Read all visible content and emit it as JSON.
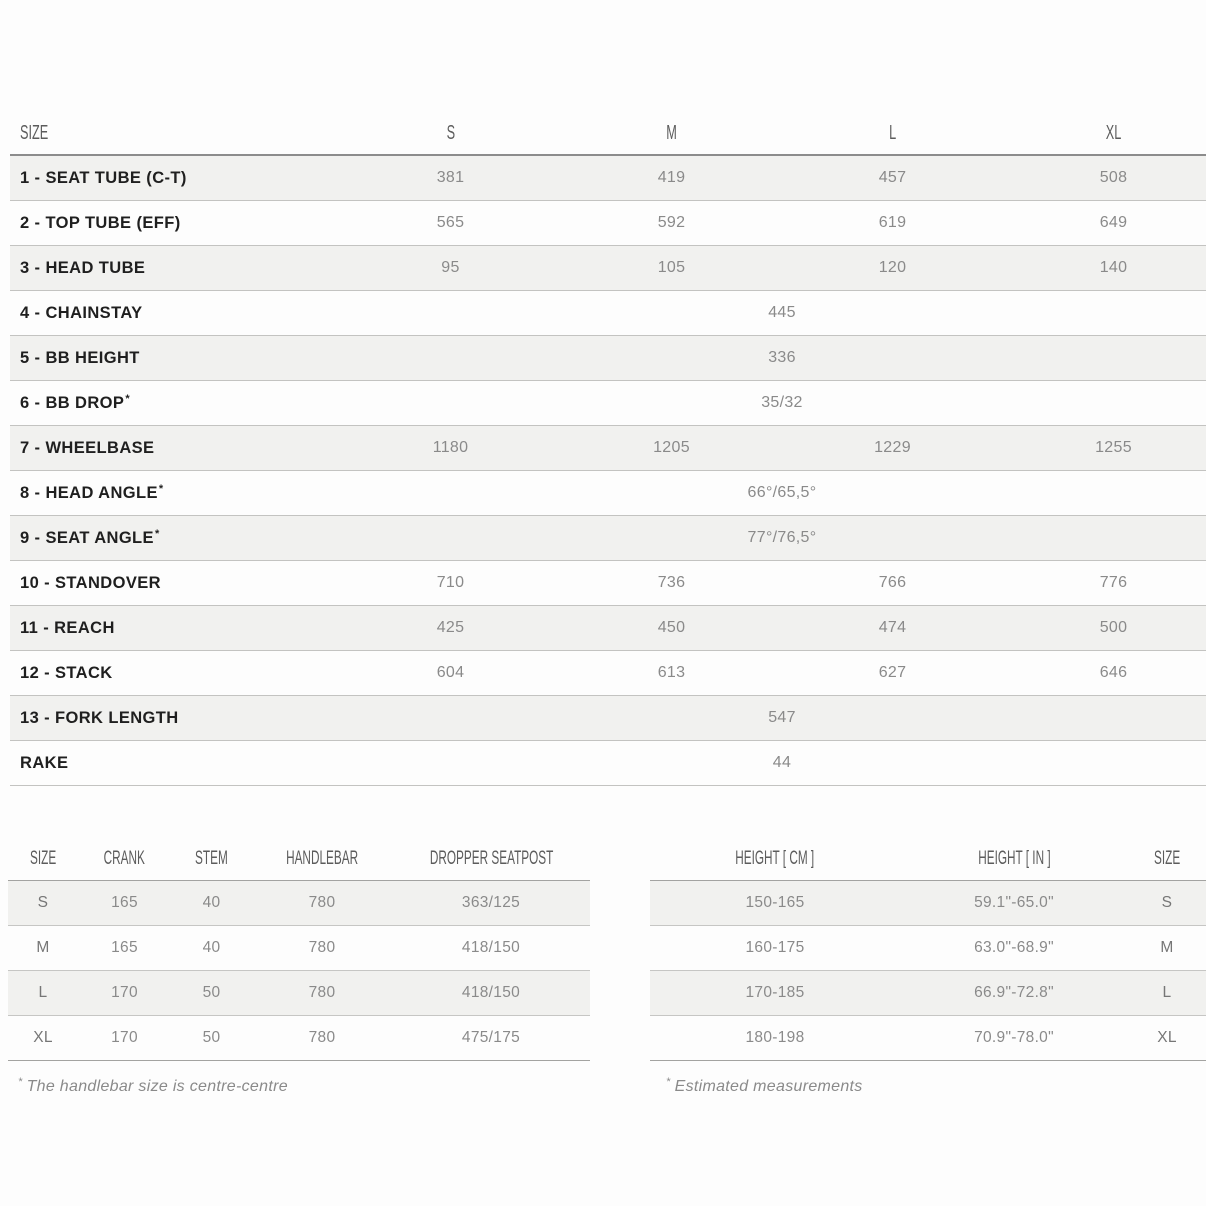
{
  "colors": {
    "row_shade": "#f1f1ef",
    "label_text": "#1f1f1f",
    "value_text": "#8a8a8a",
    "header_text": "#5c5c5c",
    "rule_dark": "#8c8c8c",
    "rule_light": "#c3c3c1"
  },
  "geometry_table": {
    "size_header": "SIZE",
    "columns": [
      "S",
      "M",
      "L",
      "XL"
    ],
    "rows": [
      {
        "label": "1 - SEAT TUBE (C-T)",
        "values": [
          "381",
          "419",
          "457",
          "508"
        ]
      },
      {
        "label": "2 - TOP TUBE (EFF)",
        "values": [
          "565",
          "592",
          "619",
          "649"
        ]
      },
      {
        "label": "3 - HEAD TUBE",
        "values": [
          "95",
          "105",
          "120",
          "140"
        ]
      },
      {
        "label": "4 - CHAINSTAY",
        "merged": "445"
      },
      {
        "label": "5 - BB HEIGHT",
        "merged": "336"
      },
      {
        "label": "6 - BB DROP",
        "sup": "*",
        "merged": "35/32"
      },
      {
        "label": "7 - WHEELBASE",
        "values": [
          "1180",
          "1205",
          "1229",
          "1255"
        ]
      },
      {
        "label": "8 - HEAD ANGLE",
        "sup": "*",
        "merged": "66°/65,5°"
      },
      {
        "label": "9 - SEAT ANGLE",
        "sup": "*",
        "merged": "77°/76,5°"
      },
      {
        "label": "10 - STANDOVER",
        "values": [
          "710",
          "736",
          "766",
          "776"
        ]
      },
      {
        "label": "11 - REACH",
        "values": [
          "425",
          "450",
          "474",
          "500"
        ]
      },
      {
        "label": "12 - STACK",
        "values": [
          "604",
          "613",
          "627",
          "646"
        ]
      },
      {
        "label": "13 - FORK LENGTH",
        "merged": "547"
      },
      {
        "label": "RAKE",
        "merged": "44"
      }
    ]
  },
  "components_table": {
    "headers": [
      "SIZE",
      "CRANK",
      "STEM",
      "HANDLEBAR",
      "DROPPER SEATPOST"
    ],
    "rows": [
      [
        "S",
        "165",
        "40",
        "780",
        "363/125"
      ],
      [
        "M",
        "165",
        "40",
        "780",
        "418/150"
      ],
      [
        "L",
        "170",
        "50",
        "780",
        "418/150"
      ],
      [
        "XL",
        "170",
        "50",
        "780",
        "475/175"
      ]
    ],
    "footnote_sup": "*",
    "footnote": "The handlebar size is centre-centre"
  },
  "sizing_table": {
    "headers": [
      "HEIGHT [ CM ]",
      "HEIGHT [ IN ]",
      "SIZE"
    ],
    "rows": [
      [
        "150-165",
        "59.1\"-65.0\"",
        "S"
      ],
      [
        "160-175",
        "63.0\"-68.9\"",
        "M"
      ],
      [
        "170-185",
        "66.9\"-72.8\"",
        "L"
      ],
      [
        "180-198",
        "70.9\"-78.0\"",
        "XL"
      ]
    ],
    "footnote_sup": "*",
    "footnote": "Estimated measurements"
  }
}
